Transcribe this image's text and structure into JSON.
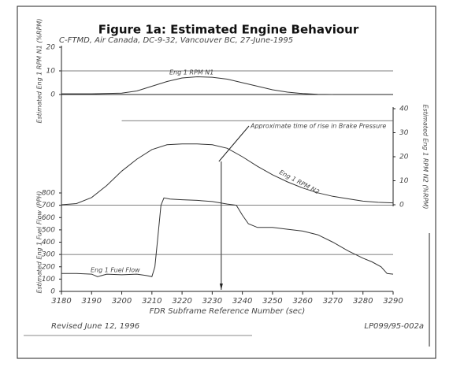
{
  "figure": {
    "title": "Figure 1a: Estimated Engine Behaviour",
    "subtitle": "C-FTMD, Air Canada, DC-9-32, Vancouver BC, 27-June-1995",
    "revised": "Revised June 12, 1996",
    "reference": "LP099/95-002a"
  },
  "chart_data": [
    {
      "type": "line",
      "y_label": "Estimated Eng 1 RPM N1 (%RPM)",
      "axis_side": "left",
      "xlim": [
        3180,
        3290
      ],
      "ylim": [
        0,
        20
      ],
      "yticks": [
        0,
        10,
        20
      ],
      "grid_lines": [
        10
      ],
      "series": [
        {
          "name": "Eng 1 RPM N1",
          "color": "#333333",
          "x": [
            3180,
            3190,
            3200,
            3205,
            3210,
            3215,
            3220,
            3225,
            3230,
            3235,
            3240,
            3245,
            3250,
            3255,
            3260,
            3265,
            3270
          ],
          "values": [
            0.3,
            0.3,
            0.6,
            1.5,
            3.5,
            5.5,
            7,
            7.5,
            7.3,
            6.5,
            5,
            3.5,
            2,
            1,
            0.4,
            0.1,
            0
          ]
        }
      ]
    },
    {
      "type": "line",
      "y_label": "Estimated Eng 1 RPM N2 (%RPM)",
      "axis_side": "right",
      "xlim": [
        3180,
        3290
      ],
      "ylim": [
        0,
        40
      ],
      "yticks": [
        0,
        10,
        20,
        30,
        40
      ],
      "grid_lines": [
        35
      ],
      "annotation": {
        "text": "Approximate time of rise in Brake Pressure",
        "x": 3233
      },
      "series": [
        {
          "name": "Eng 1 RPM N2",
          "color": "#333333",
          "x": [
            3180,
            3185,
            3190,
            3195,
            3200,
            3205,
            3210,
            3215,
            3220,
            3225,
            3230,
            3235,
            3240,
            3245,
            3250,
            3255,
            3260,
            3265,
            3270,
            3275,
            3280,
            3285,
            3290
          ],
          "values": [
            0,
            0.5,
            3,
            8,
            14,
            19,
            23,
            25,
            25.3,
            25.3,
            25,
            23.5,
            20,
            16,
            12.5,
            9.5,
            7,
            5,
            3.5,
            2.5,
            1.5,
            1,
            0.8
          ]
        }
      ]
    },
    {
      "type": "line",
      "y_label": "Estimated Eng 1 Fuel Flow (PPH)",
      "axis_side": "left",
      "x_label": "FDR Subframe Reference Number (sec)",
      "xlim": [
        3180,
        3290
      ],
      "xticks": [
        3180,
        3190,
        3200,
        3210,
        3220,
        3230,
        3240,
        3250,
        3260,
        3270,
        3280,
        3290
      ],
      "ylim": [
        0,
        800
      ],
      "yticks": [
        0,
        100,
        200,
        300,
        400,
        500,
        600,
        700,
        800
      ],
      "grid_lines": [
        300,
        700
      ],
      "series": [
        {
          "name": "Eng 1 Fuel Flow",
          "color": "#333333",
          "x": [
            3180,
            3185,
            3190,
            3192,
            3195,
            3200,
            3205,
            3208,
            3210,
            3211,
            3212,
            3213,
            3214,
            3216,
            3220,
            3225,
            3230,
            3235,
            3238,
            3240,
            3242,
            3245,
            3250,
            3255,
            3260,
            3265,
            3270,
            3275,
            3280,
            3283,
            3286,
            3288,
            3290
          ],
          "values": [
            145,
            145,
            140,
            120,
            140,
            135,
            140,
            130,
            120,
            200,
            450,
            700,
            760,
            750,
            745,
            740,
            730,
            710,
            700,
            620,
            550,
            520,
            520,
            505,
            490,
            460,
            400,
            330,
            270,
            240,
            200,
            145,
            140
          ]
        }
      ]
    }
  ]
}
